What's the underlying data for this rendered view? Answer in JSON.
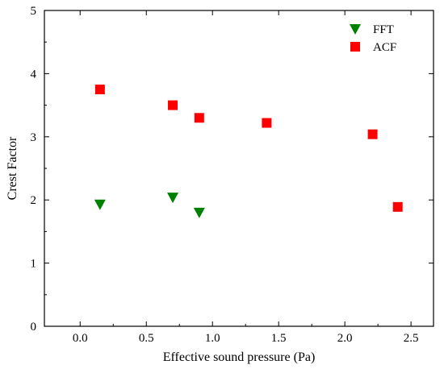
{
  "chart_data": {
    "type": "scatter",
    "xlabel": "Effective sound pressure (Pa)",
    "ylabel": "Crest Factor",
    "xlim": [
      -0.27,
      2.67
    ],
    "ylim": [
      0,
      5
    ],
    "xticks": [
      "0.0",
      "0.5",
      "1.0",
      "1.5",
      "2.0",
      "2.5"
    ],
    "xtick_values": [
      0.0,
      0.5,
      1.0,
      1.5,
      2.0,
      2.5
    ],
    "yticks": [
      "0",
      "1",
      "2",
      "3",
      "4",
      "5"
    ],
    "ytick_values": [
      0,
      1,
      2,
      3,
      4,
      5
    ],
    "grid": false,
    "legend": "top-right",
    "series": [
      {
        "name": "FFT",
        "marker": "triangle-down",
        "color": "#008000",
        "x": [
          0.15,
          0.7,
          0.9
        ],
        "y": [
          1.93,
          2.04,
          1.8
        ]
      },
      {
        "name": "ACF",
        "marker": "square",
        "color": "#ff0000",
        "x": [
          0.15,
          0.7,
          0.9,
          1.41,
          2.21,
          2.4
        ],
        "y": [
          3.75,
          3.5,
          3.3,
          3.22,
          3.04,
          1.89
        ]
      }
    ]
  }
}
